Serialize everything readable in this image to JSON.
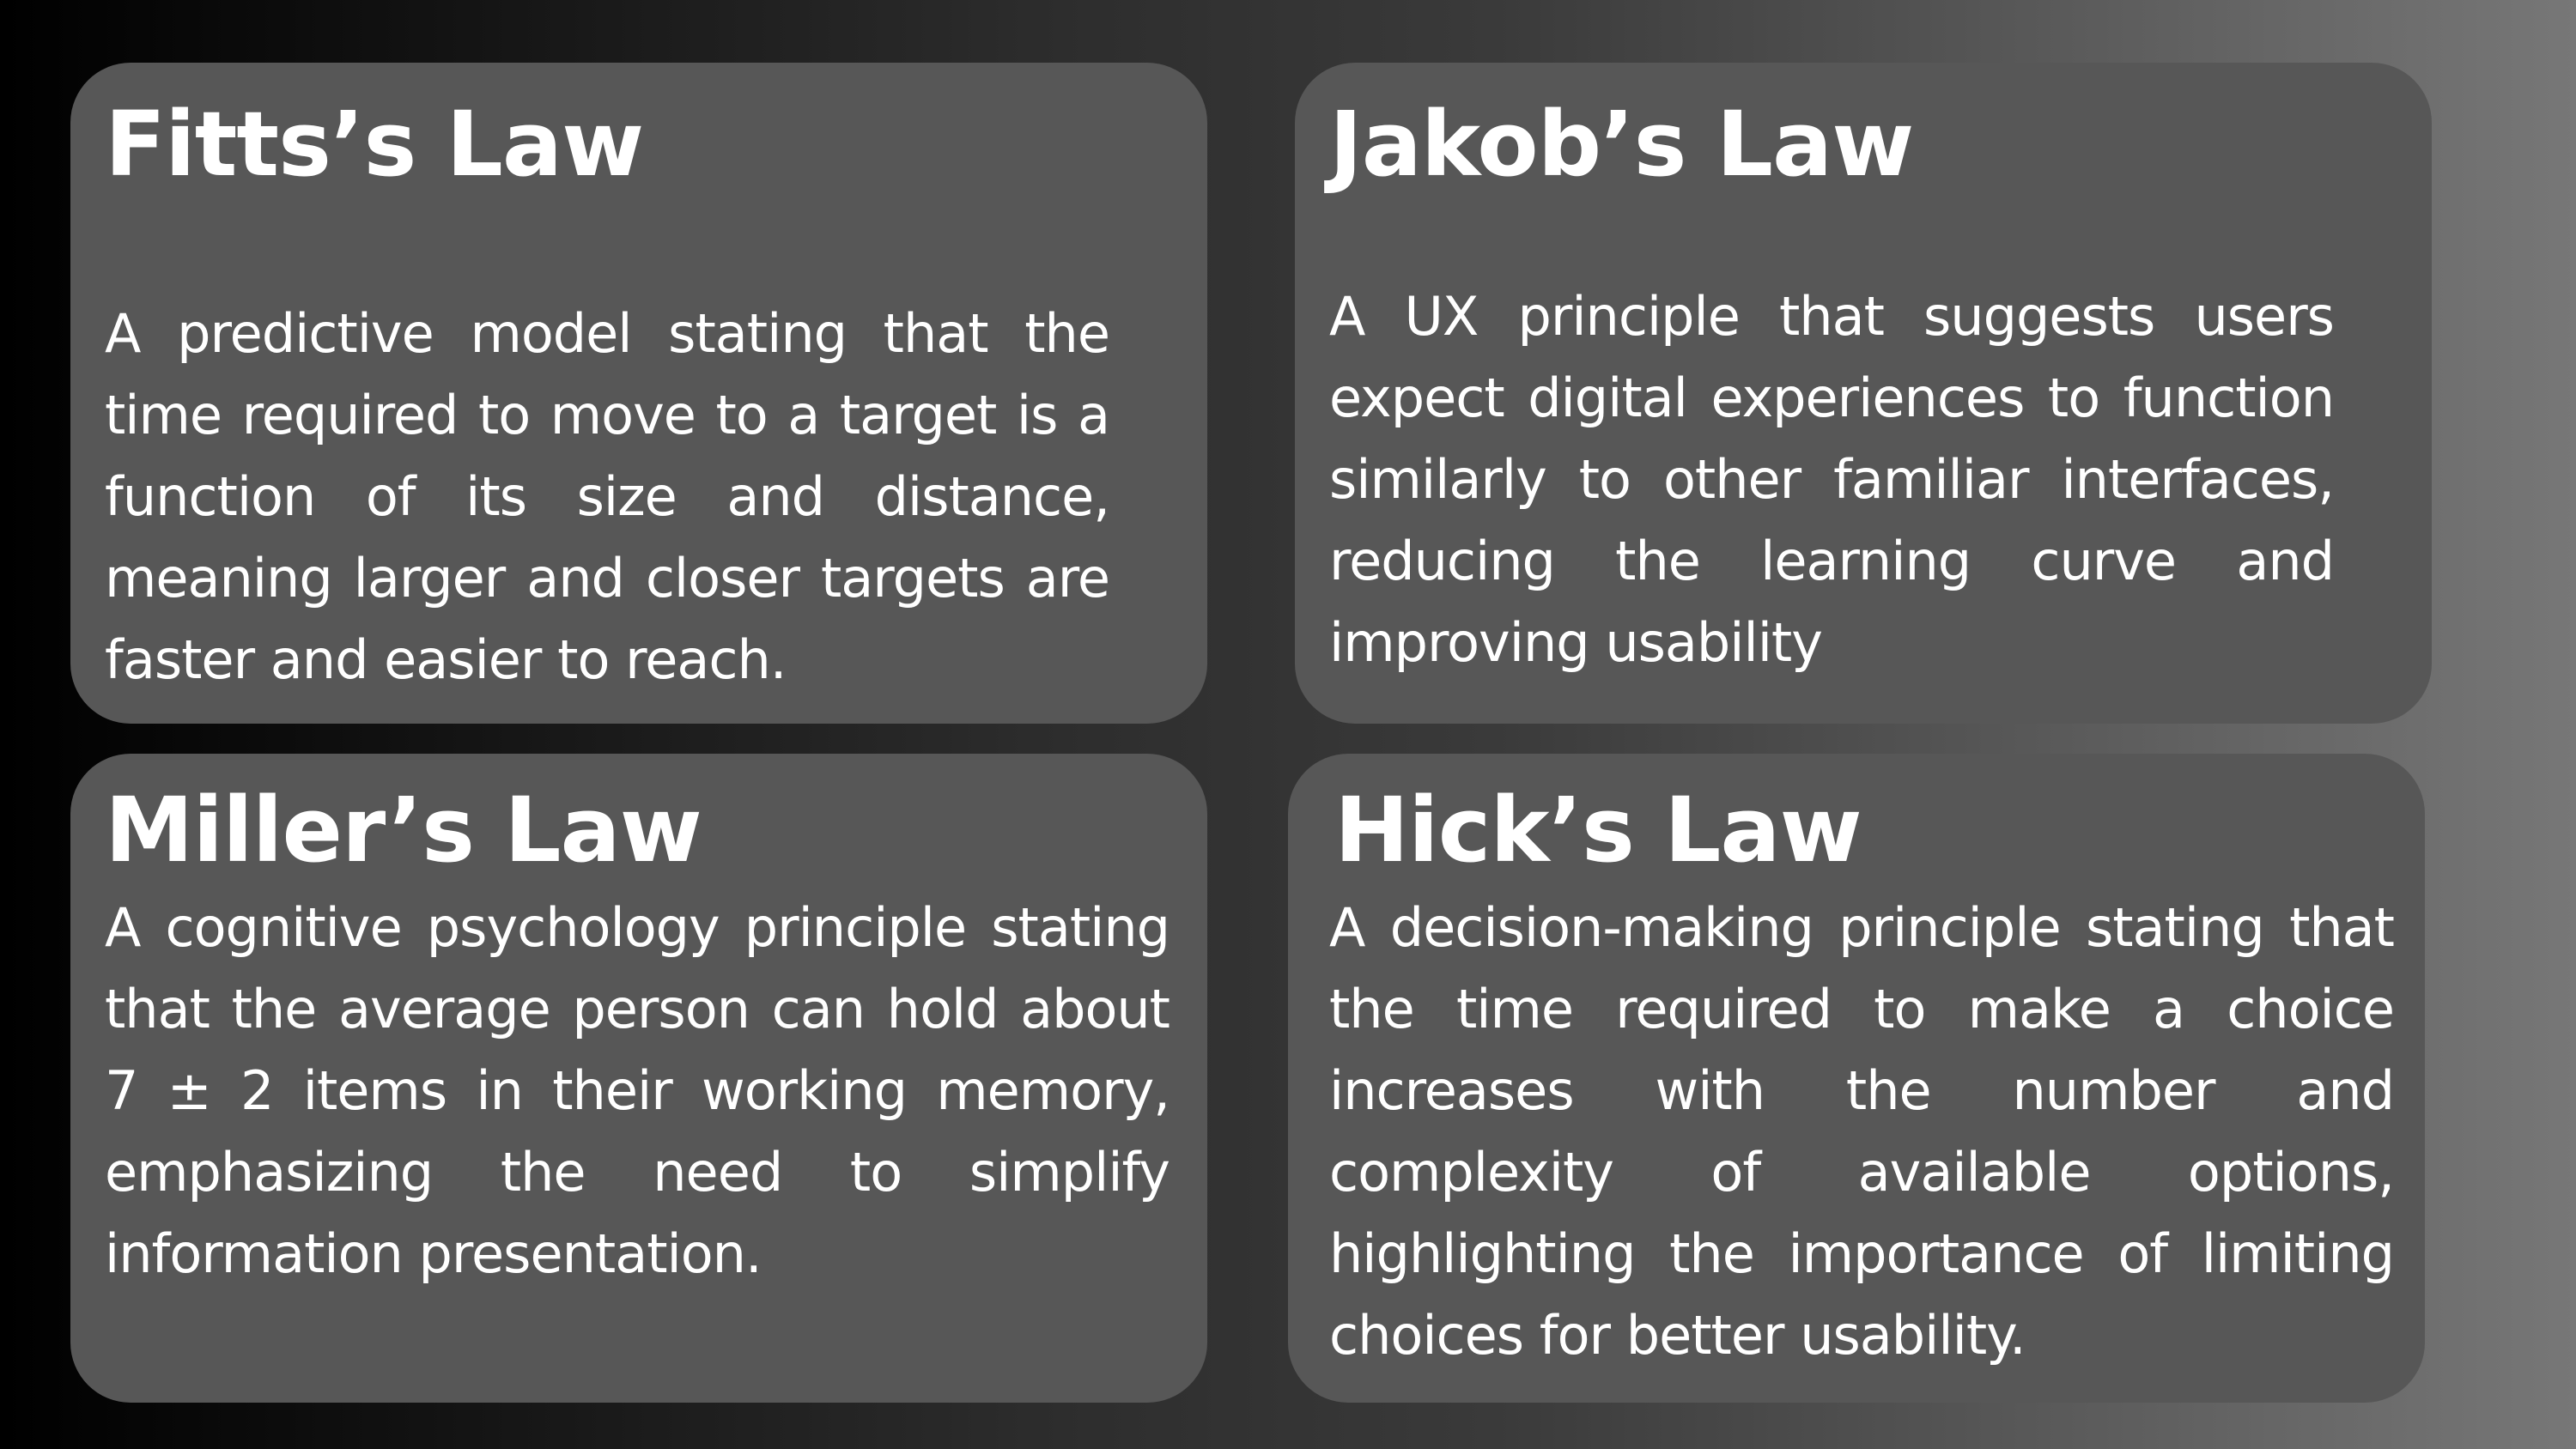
{
  "cards": [
    {
      "title": "Fitts’s Law",
      "description": "A predictive model stating that the time required to move to a target is a function of its size and distance, meaning larger and closer targets are faster and easier to reach."
    },
    {
      "title": "Jakob’s Law",
      "description": "A UX principle that suggests users expect digital experiences to function similarly to other familiar interfaces, reducing the learning curve and improving usability"
    },
    {
      "title": "Miller’s Law",
      "description": "A cognitive psychology principle stating that the average person can hold about 7 ± 2 items in their working memory, emphasizing the need to simplify information presentation."
    },
    {
      "title": "Hick’s Law",
      "description": "A decision-making principle stating that the time required to make a choice increases with the number and complexity of available options, highlighting the importance of limiting choices for better usability."
    }
  ]
}
